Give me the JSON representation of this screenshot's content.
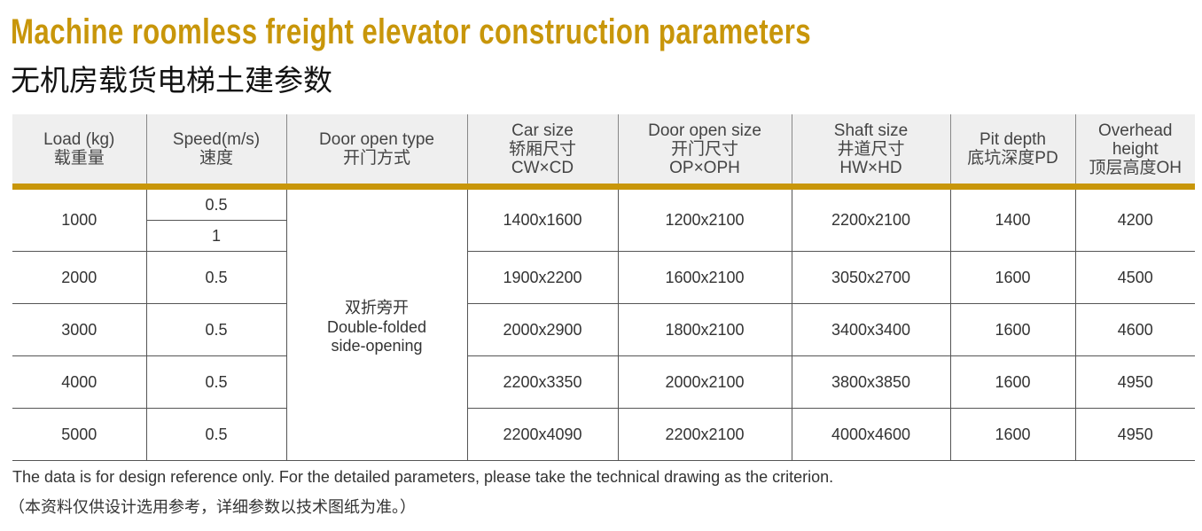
{
  "title_en": "Machine roomless freight elevator construction parameters",
  "title_cn": "无机房载货电梯土建参数",
  "accent_color": "#c8960a",
  "headers": [
    [
      "Load (kg)",
      "载重量"
    ],
    [
      "Speed(m/s)",
      "速度"
    ],
    [
      "Door open type",
      "开门方式"
    ],
    [
      "Car size",
      "轿厢尺寸",
      "CW×CD"
    ],
    [
      "Door open size",
      "开门尺寸",
      "OP×OPH"
    ],
    [
      "Shaft size",
      "井道尺寸",
      "HW×HD"
    ],
    [
      "Pit depth",
      "底坑深度PD"
    ],
    [
      "Overhead",
      "height",
      "顶层高度OH"
    ]
  ],
  "door_type": [
    "双折旁开",
    "Double-folded",
    "side-opening"
  ],
  "rows": [
    {
      "load": "1000",
      "speed": [
        "0.5",
        "1"
      ],
      "car": "1400x1600",
      "door": "1200x2100",
      "shaft": "2200x2100",
      "pit": "1400",
      "overhead": "4200"
    },
    {
      "load": "2000",
      "speed": [
        "0.5"
      ],
      "car": "1900x2200",
      "door": "1600x2100",
      "shaft": "3050x2700",
      "pit": "1600",
      "overhead": "4500"
    },
    {
      "load": "3000",
      "speed": [
        "0.5"
      ],
      "car": "2000x2900",
      "door": "1800x2100",
      "shaft": "3400x3400",
      "pit": "1600",
      "overhead": "4600"
    },
    {
      "load": "4000",
      "speed": [
        "0.5"
      ],
      "car": "2200x3350",
      "door": "2000x2100",
      "shaft": "3800x3850",
      "pit": "1600",
      "overhead": "4950"
    },
    {
      "load": "5000",
      "speed": [
        "0.5"
      ],
      "car": "2200x4090",
      "door": "2200x2100",
      "shaft": "4000x4600",
      "pit": "1600",
      "overhead": "4950"
    }
  ],
  "footnote_en": "The data is for design reference only.  For the detailed parameters, please take the technical drawing as the criterion.",
  "footnote_cn": "（本资料仅供设计选用参考，详细参数以技术图纸为准。）"
}
